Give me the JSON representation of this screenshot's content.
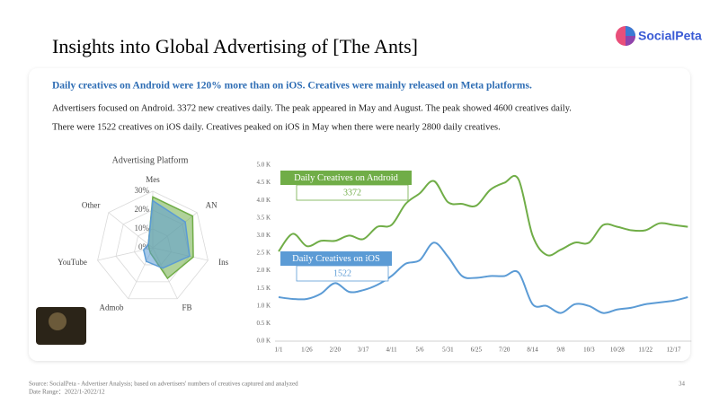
{
  "title": "Insights into Global Advertising of [The Ants]",
  "logo": "SocialPeta",
  "subtitle": "Daily creatives on Android were 120% more than on iOS. Creatives were mainly released on Meta platforms.",
  "text": [
    "Advertisers focused on Android. 3372 new creatives daily. The peak appeared in May and August. The peak showed 4600 creatives daily.",
    "There were 1522 creatives on iOS daily. Creatives peaked on iOS in May when there were nearly 2800 daily creatives."
  ],
  "chart_data": [
    {
      "type": "radar",
      "title": "Advertising Platform",
      "categories": [
        "Mes",
        "AN",
        "Ins",
        "FB",
        "Admob",
        "YouTube",
        "Other"
      ],
      "rlim": [
        0,
        30
      ],
      "rticks": [
        {
          "value": 0,
          "label": "0%"
        },
        {
          "value": 10,
          "label": "10%"
        },
        {
          "value": 20,
          "label": "20%"
        },
        {
          "value": 30,
          "label": "30%"
        }
      ],
      "series": [
        {
          "color": "#70ad47",
          "values": [
            27,
            27,
            22,
            18,
            3,
            2,
            3
          ]
        },
        {
          "color": "#5b9bd5",
          "values": [
            25,
            22,
            20,
            12,
            8,
            5,
            3
          ]
        }
      ]
    },
    {
      "type": "line",
      "categories": [
        "1/1",
        null,
        "1/26",
        null,
        "2/20",
        null,
        "3/17",
        null,
        "4/11",
        null,
        "5/6",
        null,
        "5/31",
        null,
        "6/25",
        null,
        "7/20",
        null,
        "8/14",
        null,
        "9/8",
        null,
        "10/3",
        null,
        "10/28",
        null,
        "11/22",
        null,
        "12/17",
        null
      ],
      "ylim": [
        0,
        5000
      ],
      "yticks": [
        {
          "value": 0,
          "label": "0.0 K"
        },
        {
          "value": 500,
          "label": "0.5 K"
        },
        {
          "value": 1000,
          "label": "1.0 K"
        },
        {
          "value": 1500,
          "label": "1.5 K"
        },
        {
          "value": 2000,
          "label": "2.0 K"
        },
        {
          "value": 2500,
          "label": "2.5 K"
        },
        {
          "value": 3000,
          "label": "3.0 K"
        },
        {
          "value": 3500,
          "label": "3.5 K"
        },
        {
          "value": 4000,
          "label": "4.0 K"
        },
        {
          "value": 4500,
          "label": "4.5 K"
        },
        {
          "value": 5000,
          "label": "5.0 K"
        }
      ],
      "grid": false,
      "series": [
        {
          "name": "Daily Creatives on Android",
          "color": "#70ad47",
          "values": [
            2550,
            3050,
            2700,
            2850,
            2850,
            3000,
            2900,
            3250,
            3300,
            3900,
            4200,
            4550,
            3950,
            3900,
            3850,
            4300,
            4500,
            4600,
            3000,
            2450,
            2600,
            2800,
            2800,
            3300,
            3250,
            3150,
            3150,
            3350,
            3300,
            3250
          ]
        },
        {
          "name": "Daily Creatives on iOS",
          "color": "#5b9bd5",
          "values": [
            1250,
            1200,
            1200,
            1350,
            1650,
            1400,
            1450,
            1600,
            1850,
            2200,
            2300,
            2800,
            2400,
            1850,
            1800,
            1850,
            1850,
            1950,
            1050,
            1000,
            800,
            1050,
            1000,
            800,
            900,
            950,
            1050,
            1100,
            1150,
            1250
          ]
        }
      ],
      "annotations": [
        "3372",
        "1522"
      ]
    }
  ],
  "footer": {
    "source": "Source: SocialPeta - Advertiser Analysis; based on advertisers' numbers of creatives captured and analyzed",
    "date": "Date Range：2022/1-2022/12",
    "page": "34"
  }
}
